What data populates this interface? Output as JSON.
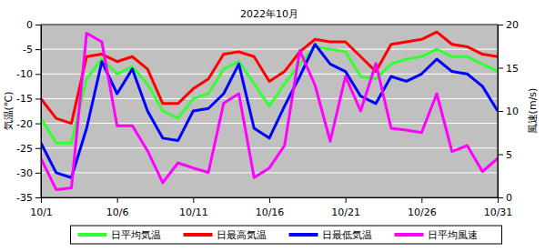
{
  "chart_data": {
    "type": "line",
    "title": "2022年10月",
    "y_label": "気温(℃)",
    "y2_label": "風速(m/s)",
    "categories": [
      "10/1",
      null,
      null,
      null,
      null,
      "10/6",
      null,
      null,
      null,
      null,
      "10/11",
      null,
      null,
      null,
      null,
      "10/16",
      null,
      null,
      null,
      null,
      "10/21",
      null,
      null,
      null,
      null,
      "10/26",
      null,
      null,
      null,
      null,
      "10/31"
    ],
    "ylim": [
      -35,
      0
    ],
    "yticks": [
      -35,
      -30,
      -25,
      -20,
      -15,
      -10,
      -5,
      0
    ],
    "y2lim": [
      0,
      20
    ],
    "y2ticks": [
      0,
      5,
      10,
      15,
      20
    ],
    "grid": true,
    "legend": "bottom",
    "series": [
      {
        "name": "日平均気温",
        "color": "#33ff33",
        "values": [
          -19,
          -24,
          -24,
          -11,
          -7,
          -10,
          -8.5,
          -12,
          -17.5,
          -19,
          -15,
          -14,
          -9,
          -7.5,
          -12,
          -16.5,
          -12,
          -8,
          -4.5,
          -5,
          -5.5,
          -10.5,
          -11,
          -8,
          -7,
          -6.5,
          -5,
          -6.5,
          -6.5,
          -8,
          -9.5
        ]
      },
      {
        "name": "日最高気温",
        "color": "#ff0000",
        "values": [
          -15,
          -19,
          -20,
          -6.5,
          -6,
          -7.5,
          -6.5,
          -9,
          -16,
          -16,
          -13,
          -11,
          -6,
          -5.5,
          -6.5,
          -11.5,
          -9.5,
          -5.5,
          -3,
          -3.5,
          -3.5,
          -6.5,
          -9.5,
          -4,
          -3.5,
          -3,
          -1.5,
          -4,
          -4.5,
          -6,
          -6.5
        ]
      },
      {
        "name": "日最低気温",
        "color": "#0000ff",
        "values": [
          -24,
          -30,
          -31,
          -21,
          -7.5,
          -14,
          -9,
          -17.5,
          -23,
          -23.5,
          -17.5,
          -17,
          -14,
          -8,
          -21,
          -23,
          -16.5,
          -10.5,
          -4,
          -8,
          -9.5,
          -14.5,
          -16,
          -10.5,
          -11.5,
          -10,
          -7,
          -9.5,
          -10,
          -12.5,
          -17.5
        ]
      },
      {
        "name": "日平均風速",
        "color": "#ff00ff",
        "axis": "y2",
        "values": [
          4.5,
          0.9,
          1.1,
          19,
          18,
          8.3,
          8.3,
          5.4,
          1.7,
          4,
          3.4,
          2.9,
          10.9,
          12,
          2.3,
          3.4,
          6,
          17,
          13,
          6.5,
          14,
          10,
          15.5,
          8,
          7.8,
          7.5,
          12,
          5.3,
          6,
          3,
          4.5
        ]
      }
    ]
  }
}
